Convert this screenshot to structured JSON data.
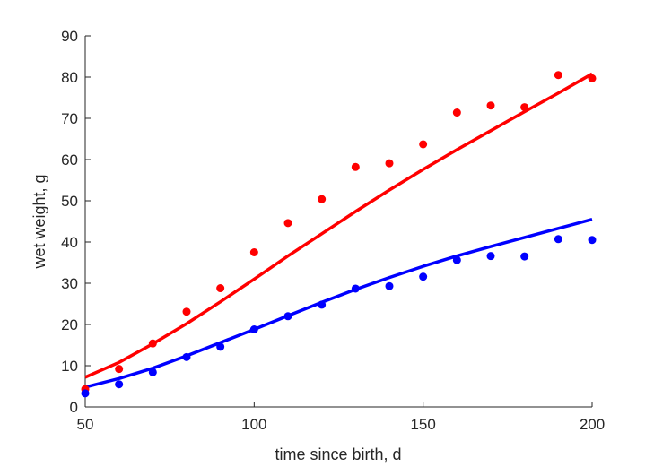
{
  "chart_data": {
    "type": "scatter",
    "title": "",
    "xlabel": "time since birth, d",
    "ylabel": "wet weight, g",
    "xlim": [
      50,
      200
    ],
    "ylim": [
      0,
      90
    ],
    "xticks": [
      50,
      100,
      150,
      200
    ],
    "yticks": [
      0,
      10,
      20,
      30,
      40,
      50,
      60,
      70,
      80,
      90
    ],
    "grid": false,
    "legend": "none",
    "series": [
      {
        "color": "#ff0000",
        "points_x": [
          50,
          60,
          70,
          80,
          90,
          100,
          110,
          120,
          130,
          140,
          150,
          160,
          170,
          180,
          190,
          200
        ],
        "points_y": [
          4.3,
          9.2,
          15.4,
          23.1,
          28.8,
          37.5,
          44.6,
          50.4,
          58.2,
          59.1,
          63.7,
          71.4,
          73.1,
          72.7,
          80.5,
          79.7
        ],
        "fit_x": [
          50,
          60,
          70,
          80,
          90,
          100,
          110,
          120,
          130,
          140,
          150,
          160,
          170,
          180,
          190,
          200
        ],
        "fit_y": [
          7.2,
          10.8,
          15.3,
          20.2,
          25.5,
          31.0,
          36.6,
          42.0,
          47.4,
          52.6,
          57.6,
          62.4,
          67.0,
          71.6,
          76.1,
          80.8
        ]
      },
      {
        "color": "#0000ff",
        "points_x": [
          50,
          60,
          70,
          80,
          90,
          100,
          110,
          120,
          130,
          140,
          150,
          160,
          170,
          180,
          190,
          200
        ],
        "points_y": [
          3.3,
          5.5,
          8.4,
          12.1,
          14.6,
          18.8,
          22.0,
          24.8,
          28.7,
          29.3,
          31.6,
          35.6,
          36.6,
          36.5,
          40.7,
          40.5
        ],
        "fit_x": [
          50,
          60,
          70,
          80,
          90,
          100,
          110,
          120,
          130,
          140,
          150,
          160,
          170,
          180,
          190,
          200
        ],
        "fit_y": [
          4.8,
          6.9,
          9.4,
          12.4,
          15.6,
          18.8,
          22.1,
          25.4,
          28.5,
          31.4,
          34.1,
          36.6,
          38.9,
          41.1,
          43.3,
          45.5
        ]
      }
    ]
  }
}
